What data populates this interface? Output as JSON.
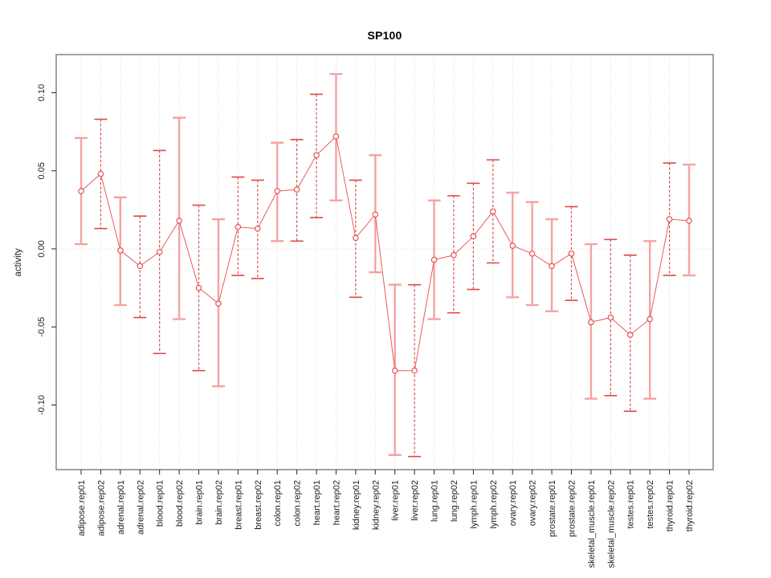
{
  "chart_data": {
    "type": "scatter",
    "title": "SP100",
    "xlabel": "",
    "ylabel": "activity",
    "legend_position": "none",
    "grid": "vertical dotted gridline per category; dotted horizontal line at 0",
    "ylim": [
      -0.142,
      0.125
    ],
    "yticks": [
      {
        "label": "0.10",
        "value": 0.1
      },
      {
        "label": "0.05",
        "value": 0.05
      },
      {
        "label": "0.00",
        "value": 0.0
      },
      {
        "label": "-0.05",
        "value": -0.05
      },
      {
        "label": "-0.10",
        "value": -0.1
      }
    ],
    "points": [
      {
        "label": "adipose.rep01",
        "mean": 0.037,
        "lower": 0.003,
        "upper": 0.071,
        "style": "solid"
      },
      {
        "label": "adipose.rep02",
        "mean": 0.048,
        "lower": 0.013,
        "upper": 0.083,
        "style": "dashed"
      },
      {
        "label": "adrenal.rep01",
        "mean": -0.001,
        "lower": -0.036,
        "upper": 0.033,
        "style": "solid"
      },
      {
        "label": "adrenal.rep02",
        "mean": -0.011,
        "lower": -0.044,
        "upper": 0.021,
        "style": "dashed"
      },
      {
        "label": "blood.rep01",
        "mean": -0.002,
        "lower": -0.067,
        "upper": 0.063,
        "style": "dashed"
      },
      {
        "label": "blood.rep02",
        "mean": 0.018,
        "lower": -0.045,
        "upper": 0.084,
        "style": "solid"
      },
      {
        "label": "brain.rep01",
        "mean": -0.025,
        "lower": -0.078,
        "upper": 0.028,
        "style": "dashed"
      },
      {
        "label": "brain.rep02",
        "mean": -0.035,
        "lower": -0.088,
        "upper": 0.019,
        "style": "solid"
      },
      {
        "label": "breast.rep01",
        "mean": 0.014,
        "lower": -0.017,
        "upper": 0.046,
        "style": "dashed"
      },
      {
        "label": "breast.rep02",
        "mean": 0.013,
        "lower": -0.019,
        "upper": 0.044,
        "style": "dashed"
      },
      {
        "label": "colon.rep01",
        "mean": 0.037,
        "lower": 0.005,
        "upper": 0.068,
        "style": "solid"
      },
      {
        "label": "colon.rep02",
        "mean": 0.038,
        "lower": 0.005,
        "upper": 0.07,
        "style": "dashed"
      },
      {
        "label": "heart.rep01",
        "mean": 0.06,
        "lower": 0.02,
        "upper": 0.099,
        "style": "dashed"
      },
      {
        "label": "heart.rep02",
        "mean": 0.072,
        "lower": 0.031,
        "upper": 0.112,
        "style": "solid"
      },
      {
        "label": "kidney.rep01",
        "mean": 0.007,
        "lower": -0.031,
        "upper": 0.044,
        "style": "dashed"
      },
      {
        "label": "kidney.rep02",
        "mean": 0.022,
        "lower": -0.015,
        "upper": 0.06,
        "style": "solid"
      },
      {
        "label": "liver.rep01",
        "mean": -0.078,
        "lower": -0.132,
        "upper": -0.023,
        "style": "solid"
      },
      {
        "label": "liver.rep02",
        "mean": -0.078,
        "lower": -0.133,
        "upper": -0.023,
        "style": "dashed"
      },
      {
        "label": "lung.rep01",
        "mean": -0.007,
        "lower": -0.045,
        "upper": 0.031,
        "style": "solid"
      },
      {
        "label": "lung.rep02",
        "mean": -0.004,
        "lower": -0.041,
        "upper": 0.034,
        "style": "dashed"
      },
      {
        "label": "lymph.rep01",
        "mean": 0.008,
        "lower": -0.026,
        "upper": 0.042,
        "style": "dashed"
      },
      {
        "label": "lymph.rep02",
        "mean": 0.024,
        "lower": -0.009,
        "upper": 0.057,
        "style": "dashed"
      },
      {
        "label": "ovary.rep01",
        "mean": 0.002,
        "lower": -0.031,
        "upper": 0.036,
        "style": "solid"
      },
      {
        "label": "ovary.rep02",
        "mean": -0.003,
        "lower": -0.036,
        "upper": 0.03,
        "style": "solid"
      },
      {
        "label": "prostate.rep01",
        "mean": -0.011,
        "lower": -0.04,
        "upper": 0.019,
        "style": "solid"
      },
      {
        "label": "prostate.rep02",
        "mean": -0.003,
        "lower": -0.033,
        "upper": 0.027,
        "style": "dashed"
      },
      {
        "label": "skeletal_muscle.rep01",
        "mean": -0.047,
        "lower": -0.096,
        "upper": 0.003,
        "style": "solid"
      },
      {
        "label": "skeletal_muscle.rep02",
        "mean": -0.044,
        "lower": -0.094,
        "upper": 0.006,
        "style": "dashed"
      },
      {
        "label": "testes.rep01",
        "mean": -0.055,
        "lower": -0.104,
        "upper": -0.004,
        "style": "dashed"
      },
      {
        "label": "testes.rep02",
        "mean": -0.045,
        "lower": -0.096,
        "upper": 0.005,
        "style": "solid"
      },
      {
        "label": "thyroid.rep01",
        "mean": 0.019,
        "lower": -0.017,
        "upper": 0.055,
        "style": "dashed"
      },
      {
        "label": "thyroid.rep02",
        "mean": 0.018,
        "lower": -0.017,
        "upper": 0.054,
        "style": "solid"
      }
    ],
    "colors": {
      "bar_solid": "#f5a2a2",
      "bar_dashed": "#e04848",
      "series_line": "#ea5a5a",
      "point_stroke": "#e04848",
      "grid": "#d5d5d5",
      "zero_line": "#d5d5d5",
      "box": "#8c8c8c",
      "tick": "#222222",
      "text": "#1c1c1c"
    }
  }
}
